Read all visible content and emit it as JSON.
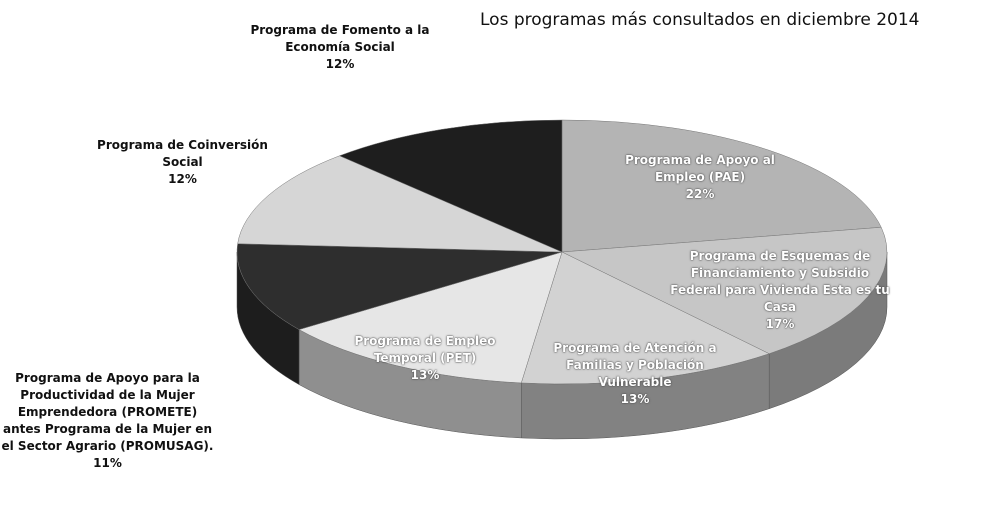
{
  "chart_data": {
    "type": "pie",
    "title": "Los programas más consultados en diciembre 2014",
    "categories": [
      "Programa de Apoyo al Empleo (PAE)",
      "Programa de Esquemas de Financiamiento y Subsidio Federal para Vivienda Esta es tu Casa",
      "Programa de Atención a Familias y Población Vulnerable",
      "Programa de Empleo Temporal (PET)",
      "Programa de Apoyo para la Productividad de la Mujer Emprendedora (PROMETE) antes Programa de la Mujer en el Sector Agrario (PROMUSAG).",
      "Programa de Coinversión Social",
      "Programa de Fomento a la Economía Social"
    ],
    "values": [
      22,
      17,
      13,
      13,
      11,
      12,
      12
    ],
    "value_labels": [
      "22%",
      "17%",
      "13%",
      "13%",
      "11%",
      "12%",
      "12%"
    ],
    "colors": [
      "#b4b4b4",
      "#c6c6c6",
      "#d2d2d2",
      "#e6e6e6",
      "#2e2e2e",
      "#d6d6d6",
      "#1e1e1e"
    ]
  }
}
